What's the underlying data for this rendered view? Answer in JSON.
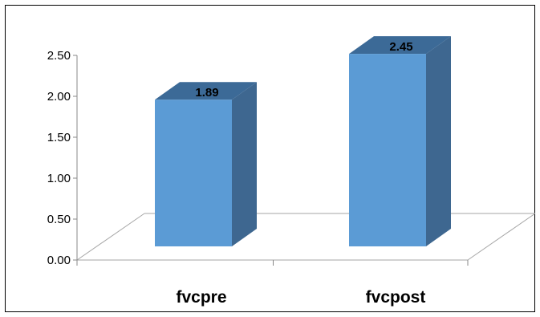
{
  "chart_data": {
    "type": "bar",
    "three_d": true,
    "categories": [
      "fvcpre",
      "fvcpost"
    ],
    "values": [
      1.89,
      2.45
    ],
    "data_labels": [
      "1.89",
      "2.45"
    ],
    "y_ticks": [
      "0.00",
      "0.50",
      "1.00",
      "1.50",
      "2.00",
      "2.50"
    ],
    "ylim": [
      0,
      2.5
    ],
    "title": "",
    "xlabel": "",
    "ylabel": "",
    "grid": false,
    "legend": "none",
    "colors": {
      "bar_front": "#5B9BD5",
      "bar_side": "#3E6790",
      "bar_top": "#3C6A97",
      "floor_line": "#A6A6A6",
      "axis_line": "#888888"
    }
  }
}
